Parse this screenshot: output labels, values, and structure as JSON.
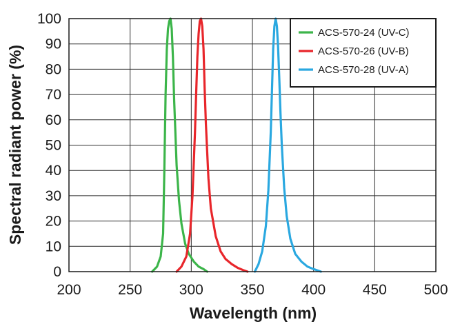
{
  "chart_data": {
    "type": "line",
    "xlabel": "Wavelength (nm)",
    "ylabel": "Spectral radiant power (%)",
    "xlim": [
      200,
      500
    ],
    "ylim": [
      0,
      100
    ],
    "xticks": [
      200,
      250,
      300,
      350,
      400,
      450,
      500
    ],
    "yticks": [
      0,
      10,
      20,
      30,
      40,
      50,
      60,
      70,
      80,
      90,
      100
    ],
    "grid": true,
    "legend_position": "top-right",
    "series": [
      {
        "name": "ACS-570-24 (UV-C)",
        "color": "#3cb54a",
        "x": [
          268,
          272,
          275,
          277,
          278,
          279,
          280,
          281,
          282,
          283,
          284,
          285,
          286,
          287,
          288,
          290,
          292,
          295,
          298,
          302,
          306,
          310,
          313
        ],
        "y": [
          0,
          2,
          6,
          15,
          40,
          70,
          88,
          96,
          99,
          100,
          96,
          85,
          68,
          55,
          42,
          28,
          19,
          11,
          7,
          4,
          2,
          1,
          0
        ]
      },
      {
        "name": "ACS-570-26 (UV-B)",
        "color": "#e8262b",
        "x": [
          288,
          292,
          296,
          299,
          301,
          303,
          304,
          305,
          306,
          307,
          308,
          309,
          310,
          311,
          312,
          314,
          316,
          320,
          324,
          328,
          333,
          338,
          343,
          346
        ],
        "y": [
          0,
          2,
          6,
          15,
          30,
          55,
          70,
          85,
          94,
          99,
          100,
          97,
          88,
          72,
          58,
          37,
          25,
          14,
          8,
          5,
          3,
          1.5,
          0.5,
          0
        ]
      },
      {
        "name": "ACS-570-28 (UV-A)",
        "color": "#2aa8e0",
        "x": [
          352,
          355,
          358,
          361,
          363,
          365,
          366,
          367,
          368,
          369,
          370,
          371,
          372,
          373,
          374,
          376,
          378,
          381,
          385,
          390,
          395,
          400,
          406
        ],
        "y": [
          0,
          3,
          8,
          18,
          32,
          55,
          72,
          88,
          97,
          100,
          97,
          89,
          76,
          62,
          50,
          33,
          22,
          13,
          7,
          4,
          2,
          1,
          0
        ]
      }
    ]
  }
}
